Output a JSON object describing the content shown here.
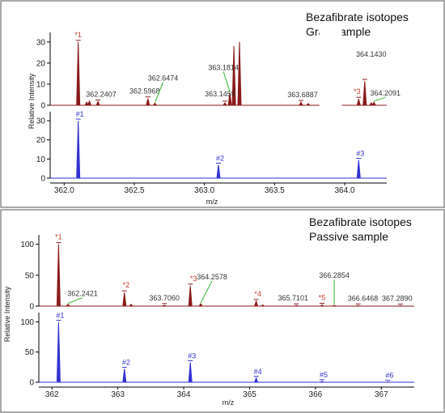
{
  "colors": {
    "sample": "#8b1a1a",
    "theory": "#3232d2",
    "callout": "#2fb52f",
    "frame": "#555555"
  },
  "chart_data": [
    {
      "type": "line",
      "title": "Bezafibrate isotopes",
      "subtitle": "Grab sample",
      "xlabel": "m/z",
      "ylabel": "Relative Intensity",
      "xlim": [
        361.9,
        364.3
      ],
      "x_break": [
        363.82,
        363.98
      ],
      "x_ticks": [
        362.0,
        362.5,
        363.0,
        363.5,
        364.0
      ],
      "x_tick_labels": [
        "362.0",
        "362.5",
        "363.0",
        "363.5",
        "364.0"
      ],
      "top_ylim": [
        0,
        33
      ],
      "top_y_ticks": [
        0,
        10,
        20,
        30
      ],
      "bottom_ylim": [
        0,
        33
      ],
      "bottom_y_ticks": [
        0,
        10,
        20,
        30
      ],
      "sample_series": {
        "peaks": [
          {
            "x": 362.1,
            "y": 30.0
          },
          {
            "x": 362.16,
            "y": 1.5
          },
          {
            "x": 362.18,
            "y": 2.0
          },
          {
            "x": 362.2407,
            "y": 1.8
          },
          {
            "x": 362.5968,
            "y": 3.2
          },
          {
            "x": 362.6474,
            "y": 1.0
          },
          {
            "x": 363.1459,
            "y": 1.2
          },
          {
            "x": 363.1814,
            "y": 6.0
          },
          {
            "x": 363.21,
            "y": 28.0
          },
          {
            "x": 363.25,
            "y": 30.0
          },
          {
            "x": 363.6887,
            "y": 1.5
          },
          {
            "x": 363.74,
            "y": 0.8
          },
          {
            "x": 364.1,
            "y": 3.0
          },
          {
            "x": 364.143,
            "y": 11.5
          },
          {
            "x": 364.19,
            "y": 1.2
          },
          {
            "x": 364.2091,
            "y": 1.5
          }
        ],
        "labels": [
          {
            "x": 362.1,
            "text": "*1",
            "dx": 0,
            "dy": -6
          },
          {
            "x": 362.2407,
            "text": "362.2407",
            "dx": 4,
            "dy": -6
          },
          {
            "x": 362.5968,
            "text": "362.5968",
            "dx": -4,
            "dy": -6
          },
          {
            "x": 362.6474,
            "text": "362.6474",
            "dx": 10,
            "dy": -28,
            "callout": true
          },
          {
            "x": 363.1459,
            "text": "363.1459",
            "dx": -6,
            "dy": -8
          },
          {
            "x": 363.1814,
            "text": "363.1814",
            "dx": -8,
            "dy": -28,
            "callout": true
          },
          {
            "x": 363.6887,
            "text": "363.6887",
            "dx": 2,
            "dy": -6
          },
          {
            "x": 364.1,
            "text": "*3",
            "dx": -2,
            "dy": -6
          },
          {
            "x": 364.143,
            "text": "364.1430",
            "dx": 8,
            "dy": -30
          },
          {
            "x": 364.2091,
            "text": "364.2091",
            "dx": 14,
            "dy": -8,
            "callout": true
          }
        ]
      },
      "theory_series": {
        "peaks": [
          {
            "x": 362.1,
            "y": 30.0
          },
          {
            "x": 363.1,
            "y": 7.0
          },
          {
            "x": 364.1,
            "y": 9.5
          }
        ],
        "labels": [
          {
            "x": 362.1,
            "text": "#1"
          },
          {
            "x": 363.1,
            "text": "#2"
          },
          {
            "x": 364.1,
            "text": "#3"
          }
        ]
      }
    },
    {
      "type": "line",
      "title": "Bezafibrate isotopes",
      "subtitle": "Passive sample",
      "xlabel": "m/z",
      "ylabel": "Relative Intensity",
      "xlim": [
        361.8,
        367.5
      ],
      "x_ticks": [
        362,
        363,
        364,
        365,
        366,
        367
      ],
      "x_tick_labels": [
        "362",
        "363",
        "364",
        "365",
        "366",
        "367"
      ],
      "top_ylim": [
        0,
        110
      ],
      "top_y_ticks": [
        0,
        50,
        100
      ],
      "bottom_ylim": [
        0,
        110
      ],
      "bottom_y_ticks": [
        0,
        50,
        100
      ],
      "sample_series": {
        "peaks": [
          {
            "x": 362.1,
            "y": 100.0
          },
          {
            "x": 362.2421,
            "y": 3.0
          },
          {
            "x": 363.1,
            "y": 22.0
          },
          {
            "x": 363.2,
            "y": 3.0
          },
          {
            "x": 363.706,
            "y": 1.5
          },
          {
            "x": 364.1,
            "y": 33.0
          },
          {
            "x": 364.2578,
            "y": 4.0
          },
          {
            "x": 365.1,
            "y": 8.0
          },
          {
            "x": 365.2,
            "y": 2.0
          },
          {
            "x": 365.7101,
            "y": 1.0
          },
          {
            "x": 366.1,
            "y": 2.0
          },
          {
            "x": 366.2854,
            "y": 1.0
          },
          {
            "x": 366.6468,
            "y": 0.8
          },
          {
            "x": 367.289,
            "y": 0.6
          }
        ],
        "labels": [
          {
            "x": 362.1,
            "text": "*1",
            "dx": 0,
            "dy": -6
          },
          {
            "x": 362.2421,
            "text": "362.2421",
            "dx": 18,
            "dy": -10,
            "callout": true
          },
          {
            "x": 363.1,
            "text": "*2",
            "dx": 2,
            "dy": -6
          },
          {
            "x": 363.706,
            "text": "363.7060",
            "dx": 0,
            "dy": -6
          },
          {
            "x": 364.1,
            "text": "*3",
            "dx": 4,
            "dy": -6
          },
          {
            "x": 364.2578,
            "text": "364.2578",
            "dx": 14,
            "dy": -30,
            "callout": true
          },
          {
            "x": 365.1,
            "text": "*4",
            "dx": 2,
            "dy": -6
          },
          {
            "x": 365.7101,
            "text": "365.7101",
            "dx": -4,
            "dy": -6
          },
          {
            "x": 366.1,
            "text": "*5",
            "dx": 0,
            "dy": -6
          },
          {
            "x": 366.2854,
            "text": "366.2854",
            "dx": 0,
            "dy": -34,
            "callout": true
          },
          {
            "x": 366.6468,
            "text": "366.6468",
            "dx": 6,
            "dy": -6
          },
          {
            "x": 367.289,
            "text": "367.2890",
            "dx": -4,
            "dy": -6
          }
        ]
      },
      "theory_series": {
        "peaks": [
          {
            "x": 362.1,
            "y": 100.0
          },
          {
            "x": 363.1,
            "y": 22.0
          },
          {
            "x": 364.1,
            "y": 33.0
          },
          {
            "x": 365.1,
            "y": 7.0
          },
          {
            "x": 366.1,
            "y": 1.5
          },
          {
            "x": 367.1,
            "y": 0.5
          }
        ],
        "labels": [
          {
            "x": 362.1,
            "text": "#1"
          },
          {
            "x": 363.1,
            "text": "#2"
          },
          {
            "x": 364.1,
            "text": "#3"
          },
          {
            "x": 365.1,
            "text": "#4"
          },
          {
            "x": 366.1,
            "text": "#5"
          },
          {
            "x": 367.1,
            "text": "#6"
          }
        ]
      }
    }
  ]
}
